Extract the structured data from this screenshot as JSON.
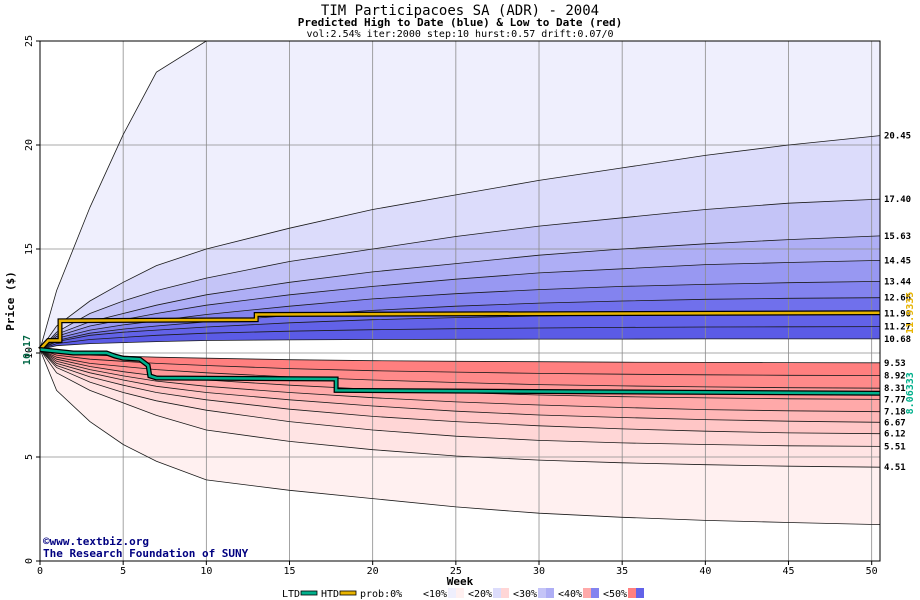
{
  "chart_data": {
    "type": "area",
    "title": "TIM Participacoes SA (ADR) - 2004",
    "subtitle": "Predicted High to Date (blue) &  Low to Date (red)",
    "params": "vol:2.54% iter:2000 step:10 hurst:0.57 drift:0.07/0",
    "xlabel": "Week",
    "ylabel": "Price ($)",
    "xlim": [
      0,
      50.5
    ],
    "ylim": [
      0,
      25
    ],
    "xticks": [
      0,
      5,
      10,
      15,
      20,
      25,
      30,
      35,
      40,
      45,
      50
    ],
    "yticks": [
      0,
      5,
      10,
      15,
      20,
      25
    ],
    "grid": true,
    "start_price": 10.17,
    "start_price_label": "10.17",
    "bands": [
      {
        "name": "upper-10",
        "x": [
          0,
          1,
          3,
          5,
          7,
          10,
          15,
          20,
          25,
          30,
          35,
          40,
          45,
          50.5
        ],
        "values": [
          10.17,
          13.0,
          17.0,
          20.5,
          23.5,
          25.0,
          25.0,
          25.0,
          25.0,
          25.0,
          25.0,
          25.0,
          25.0,
          25.0
        ],
        "label": ""
      },
      {
        "name": "upper-20",
        "x": [
          0,
          1,
          3,
          5,
          7,
          10,
          15,
          20,
          25,
          30,
          35,
          40,
          45,
          50.5
        ],
        "values": [
          10.17,
          11.3,
          12.5,
          13.4,
          14.2,
          15.0,
          16.0,
          16.9,
          17.6,
          18.3,
          18.9,
          19.5,
          20.0,
          20.45
        ],
        "label": "20.45"
      },
      {
        "name": "upper-30",
        "x": [
          0,
          1,
          3,
          5,
          7,
          10,
          15,
          20,
          25,
          30,
          35,
          40,
          45,
          50.5
        ],
        "values": [
          10.17,
          11.0,
          11.9,
          12.5,
          13.0,
          13.6,
          14.4,
          15.0,
          15.6,
          16.1,
          16.5,
          16.9,
          17.2,
          17.4
        ],
        "label": "17.40"
      },
      {
        "name": "upper-40",
        "x": [
          0,
          1,
          3,
          5,
          7,
          10,
          15,
          20,
          25,
          30,
          35,
          40,
          45,
          50.5
        ],
        "values": [
          10.17,
          10.9,
          11.5,
          11.9,
          12.3,
          12.8,
          13.4,
          13.9,
          14.3,
          14.7,
          15.0,
          15.25,
          15.45,
          15.63
        ],
        "label": "15.63"
      },
      {
        "name": "upper-50",
        "x": [
          0,
          1,
          3,
          5,
          7,
          10,
          15,
          20,
          25,
          30,
          35,
          40,
          45,
          50.5
        ],
        "values": [
          10.17,
          10.8,
          11.3,
          11.6,
          11.9,
          12.3,
          12.8,
          13.2,
          13.55,
          13.85,
          14.05,
          14.25,
          14.35,
          14.45
        ],
        "label": "14.45"
      },
      {
        "name": "upper-60",
        "x": [
          0,
          1,
          3,
          5,
          7,
          10,
          15,
          20,
          25,
          30,
          35,
          40,
          45,
          50.5
        ],
        "values": [
          10.17,
          10.7,
          11.1,
          11.35,
          11.55,
          11.85,
          12.25,
          12.6,
          12.85,
          13.05,
          13.2,
          13.3,
          13.38,
          13.44
        ],
        "label": "13.44"
      },
      {
        "name": "upper-70",
        "x": [
          0,
          1,
          3,
          5,
          7,
          10,
          15,
          20,
          25,
          30,
          35,
          40,
          45,
          50.5
        ],
        "values": [
          10.17,
          10.6,
          10.95,
          11.15,
          11.3,
          11.5,
          11.8,
          12.05,
          12.25,
          12.4,
          12.5,
          12.58,
          12.63,
          12.66
        ],
        "label": "12.66"
      },
      {
        "name": "upper-80",
        "x": [
          0,
          1,
          3,
          5,
          7,
          10,
          15,
          20,
          25,
          30,
          35,
          40,
          45,
          50.5
        ],
        "values": [
          10.17,
          10.55,
          10.85,
          11.0,
          11.1,
          11.25,
          11.45,
          11.6,
          11.7,
          11.78,
          11.83,
          11.86,
          11.88,
          11.9
        ],
        "label": "11.90"
      },
      {
        "name": "upper-90",
        "x": [
          0,
          1,
          3,
          5,
          7,
          10,
          15,
          20,
          25,
          30,
          35,
          40,
          45,
          50.5
        ],
        "values": [
          10.17,
          10.45,
          10.65,
          10.75,
          10.85,
          10.95,
          11.05,
          11.12,
          11.17,
          11.2,
          11.23,
          11.25,
          11.26,
          11.27
        ],
        "label": "11.27"
      },
      {
        "name": "upper-100",
        "x": [
          0,
          1,
          3,
          5,
          7,
          10,
          15,
          20,
          25,
          30,
          35,
          40,
          45,
          50.5
        ],
        "values": [
          10.17,
          10.35,
          10.45,
          10.5,
          10.55,
          10.6,
          10.63,
          10.65,
          10.66,
          10.67,
          10.67,
          10.68,
          10.68,
          10.68
        ],
        "label": "10.68"
      },
      {
        "name": "lower-100",
        "x": [
          0,
          1,
          3,
          5,
          7,
          10,
          15,
          20,
          25,
          30,
          35,
          40,
          45,
          50.5
        ],
        "values": [
          10.17,
          10.0,
          9.9,
          9.85,
          9.8,
          9.75,
          9.68,
          9.63,
          9.6,
          9.58,
          9.56,
          9.55,
          9.54,
          9.53
        ],
        "label": "9.53"
      },
      {
        "name": "lower-90",
        "x": [
          0,
          1,
          3,
          5,
          7,
          10,
          15,
          20,
          25,
          30,
          35,
          40,
          45,
          50.5
        ],
        "values": [
          10.17,
          9.9,
          9.7,
          9.6,
          9.5,
          9.4,
          9.25,
          9.15,
          9.08,
          9.02,
          8.98,
          8.95,
          8.93,
          8.92
        ],
        "label": "8.92"
      },
      {
        "name": "lower-80",
        "x": [
          0,
          1,
          3,
          5,
          7,
          10,
          15,
          20,
          25,
          30,
          35,
          40,
          45,
          50.5
        ],
        "values": [
          10.17,
          9.8,
          9.5,
          9.35,
          9.2,
          9.05,
          8.85,
          8.7,
          8.58,
          8.48,
          8.42,
          8.37,
          8.33,
          8.31
        ],
        "label": "8.31"
      },
      {
        "name": "lower-70",
        "x": [
          0,
          1,
          3,
          5,
          7,
          10,
          15,
          20,
          25,
          30,
          35,
          40,
          45,
          50.5
        ],
        "values": [
          10.17,
          9.7,
          9.35,
          9.1,
          8.9,
          8.7,
          8.45,
          8.25,
          8.1,
          7.98,
          7.9,
          7.84,
          7.8,
          7.77
        ],
        "label": "7.77"
      },
      {
        "name": "lower-60",
        "x": [
          0,
          1,
          3,
          5,
          7,
          10,
          15,
          20,
          25,
          30,
          35,
          40,
          45,
          50.5
        ],
        "values": [
          10.17,
          9.6,
          9.2,
          8.9,
          8.65,
          8.4,
          8.1,
          7.85,
          7.65,
          7.5,
          7.38,
          7.28,
          7.22,
          7.18
        ],
        "label": "7.18"
      },
      {
        "name": "lower-50",
        "x": [
          0,
          1,
          3,
          5,
          7,
          10,
          15,
          20,
          25,
          30,
          35,
          40,
          45,
          50.5
        ],
        "values": [
          10.17,
          9.5,
          9.05,
          8.7,
          8.4,
          8.1,
          7.75,
          7.45,
          7.2,
          7.02,
          6.9,
          6.8,
          6.72,
          6.67
        ],
        "label": "6.67"
      },
      {
        "name": "lower-40",
        "x": [
          0,
          1,
          3,
          5,
          7,
          10,
          15,
          20,
          25,
          30,
          35,
          40,
          45,
          50.5
        ],
        "values": [
          10.17,
          9.4,
          8.85,
          8.45,
          8.1,
          7.75,
          7.3,
          6.95,
          6.7,
          6.5,
          6.35,
          6.24,
          6.16,
          6.12
        ],
        "label": "6.12"
      },
      {
        "name": "lower-30",
        "x": [
          0,
          1,
          3,
          5,
          7,
          10,
          15,
          20,
          25,
          30,
          35,
          40,
          45,
          50.5
        ],
        "values": [
          10.17,
          9.3,
          8.6,
          8.1,
          7.7,
          7.25,
          6.7,
          6.3,
          6.0,
          5.8,
          5.68,
          5.6,
          5.54,
          5.51
        ],
        "label": "5.51"
      },
      {
        "name": "lower-20",
        "x": [
          0,
          1,
          3,
          5,
          7,
          10,
          15,
          20,
          25,
          30,
          35,
          40,
          45,
          50.5
        ],
        "values": [
          10.17,
          9.05,
          8.2,
          7.6,
          7.0,
          6.3,
          5.75,
          5.35,
          5.05,
          4.85,
          4.72,
          4.63,
          4.56,
          4.51
        ],
        "label": "4.51"
      },
      {
        "name": "lower-10",
        "x": [
          0,
          1,
          3,
          5,
          7,
          10,
          15,
          20,
          25,
          30,
          35,
          40,
          45,
          50.5
        ],
        "values": [
          10.17,
          8.2,
          6.7,
          5.6,
          4.8,
          3.9,
          3.4,
          3.0,
          2.6,
          2.3,
          2.1,
          1.95,
          1.85,
          1.75
        ],
        "label": ""
      }
    ],
    "band_fills": [
      "#efeffd",
      "#dcdcfb",
      "#c4c4f7",
      "#aeaef5",
      "#9898f2",
      "#8383ef",
      "#7070ec",
      "#6262e8",
      "#5b5be6",
      "#ffffff",
      "#ff7f7f",
      "#ff8a8a",
      "#ff9999",
      "#ffa9a9",
      "#ffb7b7",
      "#ffc6c6",
      "#ffd6d6",
      "#ffe4e4",
      "#fff0f0"
    ],
    "series": [
      {
        "name": "HTD",
        "color": "#e8b400",
        "x": [
          0,
          0.5,
          1.2,
          1.2,
          13,
          13,
          50.5
        ],
        "values": [
          10.17,
          10.6,
          10.6,
          11.55,
          11.6,
          11.85,
          11.9335
        ],
        "end_label": "11.9335"
      },
      {
        "name": "LTD",
        "color": "#00b08c",
        "x": [
          0,
          2,
          4,
          4.5,
          5,
          6,
          6.5,
          6.6,
          7,
          17.8,
          17.8,
          50.5
        ],
        "values": [
          10.17,
          10.0,
          10.0,
          9.85,
          9.75,
          9.7,
          9.4,
          8.9,
          8.8,
          8.75,
          8.2,
          8.0633
        ],
        "end_label": "8.06333"
      }
    ],
    "legend": {
      "position": "bottom",
      "items": [
        "LTD",
        "HTD",
        "prob:0%",
        "<10%",
        "<20%",
        "<30%",
        "<40%",
        "<50%"
      ],
      "swatches": [
        "#00b08c",
        "#e8b400",
        "#ffffff",
        "#efeffd",
        "#dcdcfb",
        "#c4c4f7",
        "#ffa9a9",
        "#ff7f7f"
      ],
      "swatch_right": [
        "",
        "",
        "#ffffff",
        "#fff0f0",
        "#ffd6d6",
        "#aeaef5",
        "#8383ef",
        "#6262e8"
      ]
    },
    "credits": [
      "©www.textbiz.org",
      "The Research Foundation of SUNY"
    ]
  }
}
